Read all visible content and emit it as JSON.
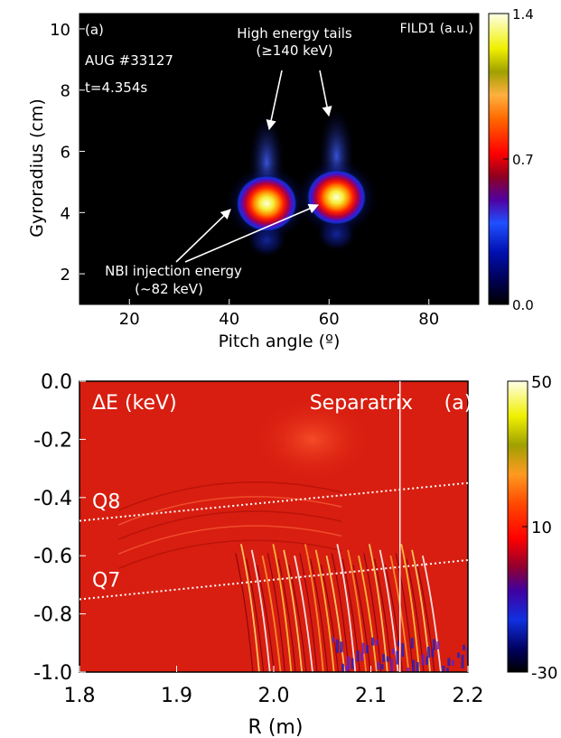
{
  "chart_data": [
    {
      "type": "heatmap",
      "panel_label": "(a)",
      "annotations": {
        "shot": "AUG #33127",
        "time": "t=4.354s",
        "tails_line1": "High energy tails",
        "tails_line2": "(≥140 keV)",
        "nbi_line1": "NBI injection energy",
        "nbi_line2": "(~82 keV)"
      },
      "xlabel": "Pitch angle (º)",
      "ylabel": "Gyroradius (cm)",
      "xlim": [
        10,
        90
      ],
      "ylim": [
        1,
        10.5
      ],
      "xticks": [
        "20",
        "40",
        "60",
        "80"
      ],
      "yticks": [
        "2",
        "4",
        "6",
        "8",
        "10"
      ],
      "colorbar": {
        "label": "FILD1 (a.u.)",
        "range": [
          0.0,
          1.4
        ],
        "ticks": [
          "0.0",
          "0.7",
          "1.4"
        ]
      },
      "spots": [
        {
          "name": "spot-1",
          "pitch": 47.5,
          "gyroradius": 4.3,
          "intensity": 1.4
        },
        {
          "name": "spot-2",
          "pitch": 61.5,
          "gyroradius": 4.5,
          "intensity": 1.2
        }
      ]
    },
    {
      "type": "heatmap",
      "title": "ΔE (keV)",
      "panel_label": "(a)",
      "separatrix_label": "Separatrix",
      "separatrix_R": 2.13,
      "xlabel": "R (m)",
      "ylabel": "",
      "xlim": [
        1.8,
        2.2
      ],
      "ylim": [
        -1.0,
        0.0
      ],
      "xticks": [
        "1.8",
        "1.9",
        "2.0",
        "2.1",
        "2.2"
      ],
      "yticks": [
        "0.0",
        "-0.2",
        "-0.4",
        "-0.6",
        "-0.8",
        "-1.0"
      ],
      "colorbar": {
        "range": [
          -30,
          50
        ],
        "ticks": [
          "-30",
          "10",
          "50"
        ]
      },
      "lines": [
        {
          "label": "Q8",
          "start": [
            1.8,
            -0.48
          ],
          "end": [
            2.2,
            -0.35
          ]
        },
        {
          "label": "Q7",
          "start": [
            1.8,
            -0.75
          ],
          "end": [
            2.2,
            -0.615
          ]
        }
      ]
    }
  ]
}
